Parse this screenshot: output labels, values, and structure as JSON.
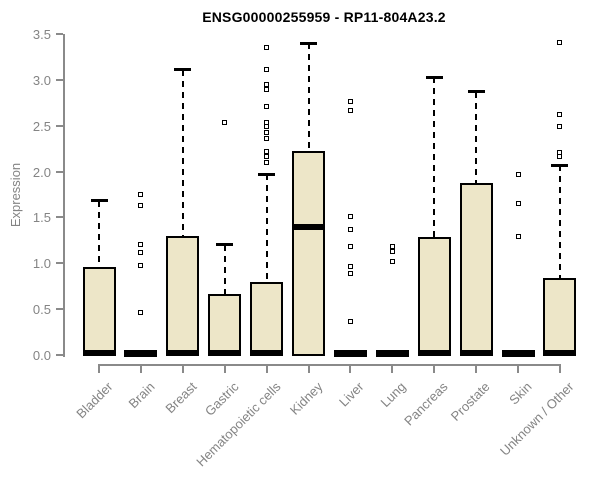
{
  "header": {
    "title": "ENSG00000255959 - RP11-804A23.2"
  },
  "chart_data": {
    "type": "boxplot",
    "title": "ENSG00000255959 - RP11-804A23.2",
    "xlabel": "",
    "ylabel": "Expression",
    "ylim": [
      0,
      3.5
    ],
    "yticks": [
      0.0,
      0.5,
      1.0,
      1.5,
      2.0,
      2.5,
      3.0,
      3.5
    ],
    "grid": false,
    "legend": "none",
    "colors": {
      "box_fill": "#ede6c8",
      "box_border": "#000000",
      "median": "#000000",
      "whisker": "#000000",
      "axis": "#8a8a8a",
      "tick_label": "#848484",
      "title": "#000000",
      "background": "#ffffff"
    },
    "categories": [
      {
        "label": "Bladder",
        "q1": 0,
        "median": 0.02,
        "q3": 0.96,
        "whisker_low": 0,
        "whisker_high": 1.68,
        "outliers": []
      },
      {
        "label": "Brain",
        "q1": 0,
        "median": 0.02,
        "q3": 0.02,
        "whisker_low": 0,
        "whisker_high": 0.02,
        "outliers": [
          1.75,
          1.63,
          1.21,
          1.12,
          0.98,
          0.46
        ]
      },
      {
        "label": "Breast",
        "q1": 0,
        "median": 0.02,
        "q3": 1.3,
        "whisker_low": 0,
        "whisker_high": 3.11,
        "outliers": []
      },
      {
        "label": "Gastric",
        "q1": 0,
        "median": 0.02,
        "q3": 0.67,
        "whisker_low": 0,
        "whisker_high": 1.2,
        "outliers": [
          2.53
        ]
      },
      {
        "label": "Hematopoietic cells",
        "q1": 0,
        "median": 0.02,
        "q3": 0.8,
        "whisker_low": 0,
        "whisker_high": 1.97,
        "outliers": [
          3.35,
          3.11,
          2.95,
          2.9,
          2.71,
          2.54,
          2.49,
          2.43,
          2.36,
          2.22,
          2.16,
          2.1
        ]
      },
      {
        "label": "Kidney",
        "q1": 0,
        "median": 1.4,
        "q3": 2.22,
        "whisker_low": 0,
        "whisker_high": 3.4,
        "outliers": []
      },
      {
        "label": "Liver",
        "q1": 0,
        "median": 0.02,
        "q3": 0.02,
        "whisker_low": 0,
        "whisker_high": 0.02,
        "outliers": [
          2.76,
          2.67,
          1.51,
          1.37,
          1.18,
          0.97,
          0.89,
          0.37
        ]
      },
      {
        "label": "Lung",
        "q1": 0,
        "median": 0.02,
        "q3": 0.02,
        "whisker_low": 0,
        "whisker_high": 0.02,
        "outliers": [
          1.18,
          1.13,
          1.02
        ]
      },
      {
        "label": "Pancreas",
        "q1": 0,
        "median": 0.02,
        "q3": 1.29,
        "whisker_low": 0,
        "whisker_high": 3.03,
        "outliers": []
      },
      {
        "label": "Prostate",
        "q1": 0,
        "median": 0.02,
        "q3": 1.88,
        "whisker_low": 0,
        "whisker_high": 2.87,
        "outliers": []
      },
      {
        "label": "Skin",
        "q1": 0,
        "median": 0.02,
        "q3": 0.02,
        "whisker_low": 0,
        "whisker_high": 0.02,
        "outliers": [
          1.97,
          1.65,
          1.29
        ]
      },
      {
        "label": "Unknown / Other",
        "q1": 0,
        "median": 0.02,
        "q3": 0.84,
        "whisker_low": 0,
        "whisker_high": 2.07,
        "outliers": [
          3.41,
          2.62,
          2.49,
          2.21,
          2.16
        ]
      }
    ]
  }
}
